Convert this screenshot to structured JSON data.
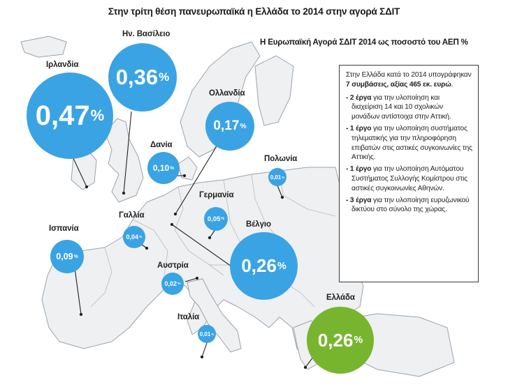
{
  "title": "Στην τρίτη θέση πανευρωπαϊκά η Ελλάδα το 2014 στην αγορά ΣΔΙΤ",
  "subtitle": "Η Ευρωπαϊκή Αγορά ΣΔΙΤ 2014 ως ποσοστό του ΑΕΠ %",
  "colors": {
    "bubble_blue": "#3aa3e3",
    "bubble_green": "#78b52f",
    "map_land": "#eef0f2",
    "map_border": "#9aa3ab"
  },
  "countries": [
    {
      "name": "Ιρλανδία",
      "value": "0,47",
      "unit": "%"
    },
    {
      "name": "Ην. Βασίλειο",
      "value": "0,36",
      "unit": "%"
    },
    {
      "name": "Ολλανδία",
      "value": "0,17",
      "unit": "%"
    },
    {
      "name": "Δανία",
      "value": "0,10",
      "unit": "%"
    },
    {
      "name": "Πολωνία",
      "value": "0,01",
      "unit": "%"
    },
    {
      "name": "Γερμανία",
      "value": "0,05",
      "unit": "%"
    },
    {
      "name": "Γαλλία",
      "value": "0,04",
      "unit": "%"
    },
    {
      "name": "Ισπανία",
      "value": "0,09",
      "unit": "%"
    },
    {
      "name": "Βέλγιο",
      "value": "0,26",
      "unit": "%"
    },
    {
      "name": "Αυστρία",
      "value": "0,02",
      "unit": "%"
    },
    {
      "name": "Ιταλία",
      "value": "0,01",
      "unit": "%"
    },
    {
      "name": "Ελλάδα",
      "value": "0,26",
      "unit": "%"
    }
  ],
  "infobox": {
    "intro_a": "Στην Ελλάδα κατά το 2014 υπογράφηκαν ",
    "intro_b": "7 συμβάσεις, αξίας 465 εκ. ευρώ",
    "intro_c": ".",
    "items": [
      {
        "bold": "- 2 έργα",
        "text": " για την υλοποίηση και διαχείριση 14 και 10 σχολικών μονάδων αντίστοιχα στην Αττική."
      },
      {
        "bold": "- 1 έργο",
        "text": " για την υλοποίηση συστήματος τηλεματικής για την πληροφόρηση επιβατών στις αστικές συγκοινωνίες της Αττικής."
      },
      {
        "bold": "- 1 έργο",
        "text": " για την υλοποίηση Αυτόματου Συστήματος Συλλογής Κομίστρου στις αστικές συγκοινωνίες Αθηνών."
      },
      {
        "bold": "- 3 έργα",
        "text": " για την υλοποίηση ευρυζωνικού δικτύου στο σύνολο της χώρας."
      }
    ]
  }
}
